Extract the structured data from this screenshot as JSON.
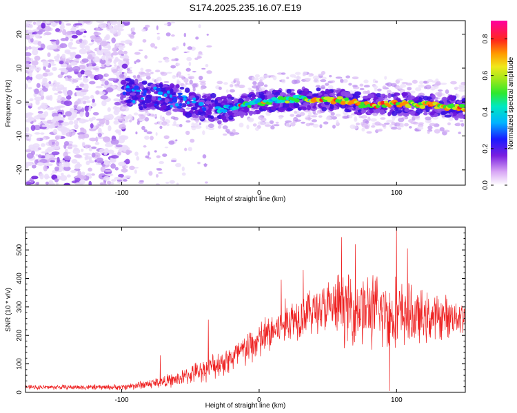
{
  "title": "S174.2025.235.16.07.E19",
  "chart_data": [
    {
      "type": "heatmap",
      "name": "spectrogram",
      "xlabel": "Height of straight line (km)",
      "ylabel": "Frequency (Hz)",
      "xlim": [
        -170,
        150
      ],
      "ylim": [
        -24.5,
        24
      ],
      "xticks": [
        -100,
        0,
        100
      ],
      "xtick_labels": [
        "-100",
        "0",
        "100"
      ],
      "yticks": [
        20,
        10,
        0,
        -10,
        -20
      ],
      "ytick_labels": [
        "20",
        "10",
        "0",
        "-10",
        "-20"
      ],
      "ridge": [
        {
          "x": -100,
          "y": 3
        },
        {
          "x": -85,
          "y": 2
        },
        {
          "x": -60,
          "y": 1
        },
        {
          "x": -40,
          "y": -2
        },
        {
          "x": -25,
          "y": -2
        },
        {
          "x": 0,
          "y": 0
        },
        {
          "x": 30,
          "y": 1
        },
        {
          "x": 60,
          "y": 0.5
        },
        {
          "x": 80,
          "y": -1
        },
        {
          "x": 100,
          "y": -0.5
        },
        {
          "x": 130,
          "y": -1
        },
        {
          "x": 150,
          "y": -2
        }
      ],
      "colorbar": {
        "label": "Normalized spectral amplitude",
        "range": [
          0.0,
          0.9
        ],
        "ticks": [
          0.0,
          0.2,
          0.4,
          0.6,
          0.8
        ],
        "tick_labels": [
          "0.0",
          "0.2",
          "0.4",
          "0.6",
          "0.8"
        ]
      }
    },
    {
      "type": "line",
      "name": "snr",
      "xlabel": "Height of straight line (km)",
      "ylabel": "SNR (10 * v/v)",
      "xlim": [
        -170,
        150
      ],
      "ylim": [
        0,
        580
      ],
      "xticks": [
        -100,
        0,
        100
      ],
      "xtick_labels": [
        "-100",
        "0",
        "100"
      ],
      "yticks": [
        0,
        100,
        200,
        300,
        400,
        500
      ],
      "ytick_labels": [
        "0",
        "100",
        "200",
        "300",
        "400",
        "500"
      ],
      "color": "#ee2222",
      "envelope": [
        {
          "x": -170,
          "mean": 18,
          "spread": 8
        },
        {
          "x": -100,
          "mean": 18,
          "spread": 10
        },
        {
          "x": -80,
          "mean": 30,
          "spread": 18
        },
        {
          "x": -60,
          "mean": 45,
          "spread": 25
        },
        {
          "x": -40,
          "mean": 80,
          "spread": 40
        },
        {
          "x": -20,
          "mean": 120,
          "spread": 55
        },
        {
          "x": 0,
          "mean": 180,
          "spread": 70
        },
        {
          "x": 20,
          "mean": 250,
          "spread": 80
        },
        {
          "x": 40,
          "mean": 290,
          "spread": 80
        },
        {
          "x": 60,
          "mean": 300,
          "spread": 120
        },
        {
          "x": 80,
          "mean": 290,
          "spread": 130
        },
        {
          "x": 100,
          "mean": 270,
          "spread": 130
        },
        {
          "x": 120,
          "mean": 260,
          "spread": 90
        },
        {
          "x": 150,
          "mean": 270,
          "spread": 60
        }
      ],
      "peaks": [
        {
          "x": -72,
          "y": 130
        },
        {
          "x": -37,
          "y": 255
        },
        {
          "x": 16,
          "y": 395
        },
        {
          "x": 32,
          "y": 430
        },
        {
          "x": 60,
          "y": 545
        },
        {
          "x": 70,
          "y": 520
        },
        {
          "x": 100,
          "y": 580
        },
        {
          "x": 108,
          "y": 505
        },
        {
          "x": 95,
          "y": 5
        }
      ]
    }
  ]
}
